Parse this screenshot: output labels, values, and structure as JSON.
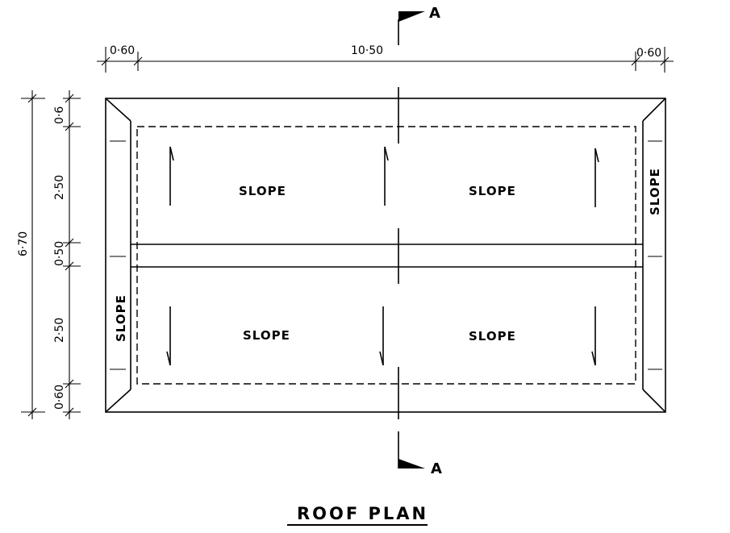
{
  "title": "ROOF PLAN",
  "section_marker": "A",
  "slope_label": "SLOPE",
  "dims_top": {
    "left_overhang": "0·60",
    "span": "10·50",
    "right_overhang": "0·60"
  },
  "dims_left": {
    "total": "6·70",
    "top_overhang": "0·6",
    "upper_bay": "2·50",
    "ridge": "0·50",
    "lower_bay": "2·50",
    "bottom_overhang": "0·60"
  }
}
